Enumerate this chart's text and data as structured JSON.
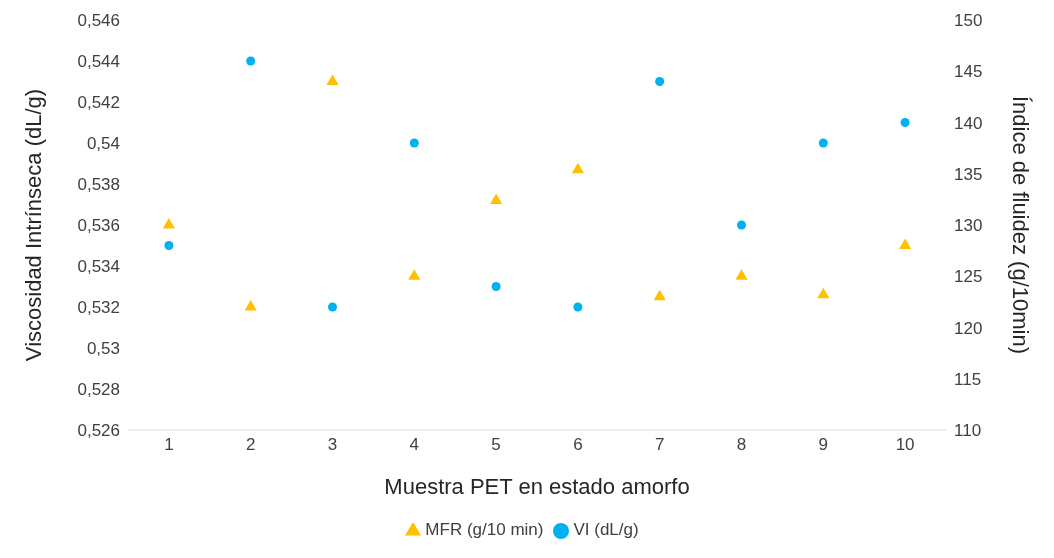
{
  "chart_data": {
    "type": "scatter",
    "xlabel": "Muestra PET en estado amorfo",
    "ylabel": "Viscosidad Intrínseca (dL/g)",
    "y2label": "Índice de fluidez (g/10min)",
    "categories": [
      "1",
      "2",
      "3",
      "4",
      "5",
      "6",
      "7",
      "8",
      "9",
      "10"
    ],
    "series": [
      {
        "name": "VI (dL/g)",
        "color": "#00b0f0",
        "marker": "circle",
        "values": [
          0.535,
          0.544,
          0.532,
          0.54,
          0.533,
          0.532,
          0.543,
          0.536,
          0.54,
          0.541
        ]
      },
      {
        "name": "MFR (g/10 min)",
        "color": "#ffc000",
        "marker": "triangle",
        "axis": "y2",
        "values": [
          130,
          122,
          144,
          125,
          132.4,
          135.4,
          123,
          125,
          123.2,
          128
        ]
      }
    ],
    "ylim": [
      0.526,
      0.546
    ],
    "yticks": [
      {
        "value": 0.526,
        "label": "0,526"
      },
      {
        "value": 0.528,
        "label": "0,528"
      },
      {
        "value": 0.53,
        "label": "0,53"
      },
      {
        "value": 0.532,
        "label": "0,532"
      },
      {
        "value": 0.534,
        "label": "0,534"
      },
      {
        "value": 0.536,
        "label": "0,536"
      },
      {
        "value": 0.538,
        "label": "0,538"
      },
      {
        "value": 0.54,
        "label": "0,54"
      },
      {
        "value": 0.542,
        "label": "0,542"
      },
      {
        "value": 0.544,
        "label": "0,544"
      },
      {
        "value": 0.546,
        "label": "0,546"
      }
    ],
    "y2lim": [
      110,
      150
    ],
    "y2ticks": [
      110,
      115,
      120,
      125,
      130,
      135,
      140,
      145,
      150
    ],
    "grid": false,
    "legend": "bottom"
  }
}
